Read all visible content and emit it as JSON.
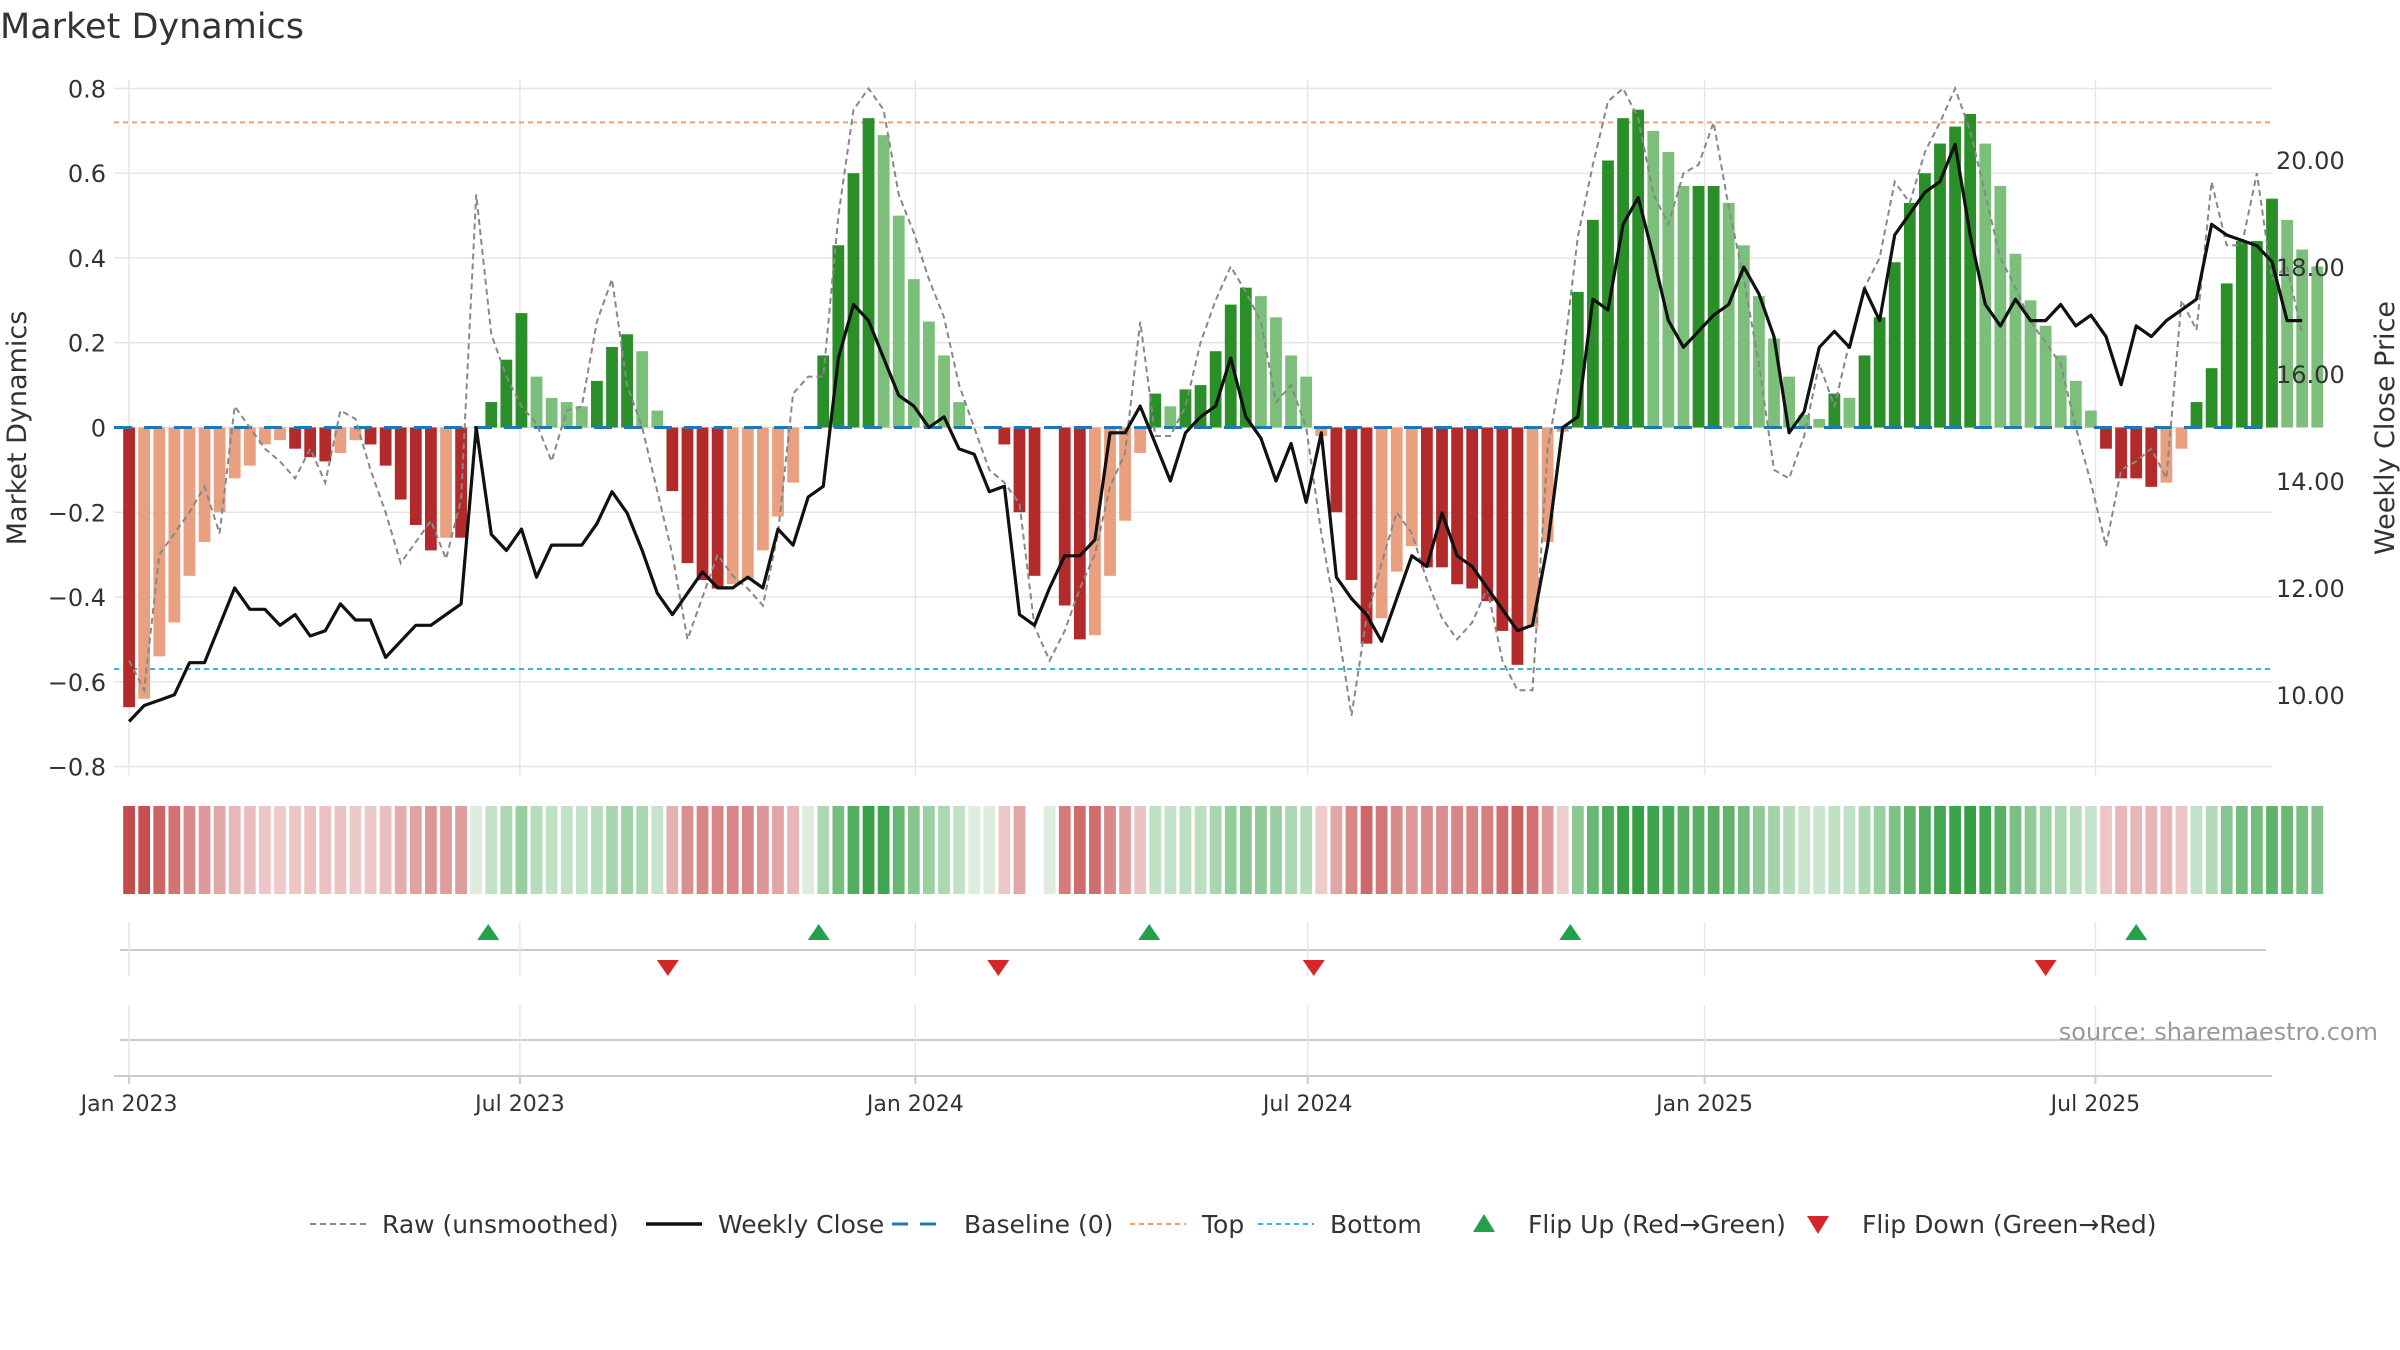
{
  "chart_data": {
    "type": "bar",
    "title": "Market Dynamics",
    "ylabel_left": "Market Dynamics",
    "ylabel_right": "Weekly Close Price",
    "left_ylim": [
      -0.82,
      0.82
    ],
    "left_ticks": [
      0.8,
      0.6,
      0.4,
      0.2,
      0,
      -0.2,
      -0.4,
      -0.6,
      -0.8
    ],
    "left_tick_labels": [
      "0.8",
      "0.6",
      "0.4",
      "0.2",
      "0",
      "−0.2",
      "−0.4",
      "−0.6",
      "−0.8"
    ],
    "right_ylim": [
      8.5,
      21.5
    ],
    "right_ticks": [
      20,
      18,
      16,
      14,
      12,
      10
    ],
    "right_tick_labels": [
      "20.00",
      "18.00",
      "16.00",
      "14.00",
      "12.00",
      "10.00"
    ],
    "top_level": 0.72,
    "bottom_level": -0.57,
    "baseline": 0,
    "x_start_week": -1,
    "x_end_week": 142,
    "x_ticks": [
      {
        "label": "Jan 2023",
        "week": 0
      },
      {
        "label": "Jul 2023",
        "week": 25.9
      },
      {
        "label": "Jan 2024",
        "week": 52.1
      },
      {
        "label": "Jul 2024",
        "week": 78.1
      },
      {
        "label": "Jan 2025",
        "week": 104.4
      },
      {
        "label": "Jul 2025",
        "week": 130.3
      }
    ],
    "bars": [
      -0.66,
      -0.64,
      -0.54,
      -0.46,
      -0.35,
      -0.27,
      -0.2,
      -0.12,
      -0.09,
      -0.04,
      -0.03,
      -0.05,
      -0.07,
      -0.08,
      -0.06,
      -0.03,
      -0.04,
      -0.09,
      -0.17,
      -0.23,
      -0.29,
      -0.26,
      -0.26,
      0.0,
      0.06,
      0.16,
      0.27,
      0.12,
      0.07,
      0.06,
      0.05,
      0.11,
      0.19,
      0.22,
      0.18,
      0.04,
      -0.15,
      -0.32,
      -0.36,
      -0.38,
      -0.37,
      -0.36,
      -0.29,
      -0.21,
      -0.13,
      0.0,
      0.17,
      0.43,
      0.6,
      0.73,
      0.69,
      0.5,
      0.35,
      0.25,
      0.17,
      0.06,
      0.0,
      0.0,
      -0.04,
      -0.2,
      -0.35,
      0.0,
      -0.42,
      -0.5,
      -0.49,
      -0.35,
      -0.22,
      -0.06,
      0.08,
      0.05,
      0.09,
      0.1,
      0.18,
      0.29,
      0.33,
      0.31,
      0.26,
      0.17,
      0.12,
      -0.02,
      -0.2,
      -0.36,
      -0.51,
      -0.45,
      -0.34,
      -0.28,
      -0.33,
      -0.33,
      -0.37,
      -0.38,
      -0.41,
      -0.48,
      -0.56,
      -0.47,
      -0.27,
      -0.01,
      0.32,
      0.49,
      0.63,
      0.73,
      0.75,
      0.7,
      0.65,
      0.57,
      0.57,
      0.57,
      0.53,
      0.43,
      0.31,
      0.21,
      0.12,
      0.03,
      0.02,
      0.08,
      0.07,
      0.17,
      0.26,
      0.39,
      0.53,
      0.6,
      0.67,
      0.71,
      0.74,
      0.67,
      0.57,
      0.41,
      0.3,
      0.24,
      0.17,
      0.11,
      0.04,
      -0.05,
      -0.12,
      -0.12,
      -0.14,
      -0.13,
      -0.05,
      0.06,
      0.14,
      0.34,
      0.44,
      0.44,
      0.54,
      0.49,
      0.42,
      0.38
    ],
    "bar_dark_color": "#2a8f28",
    "bar_light_color": "#7cbf7b",
    "bar_red_dark_color": "#b22a2a",
    "bar_red_light_color": "#e8a080",
    "raw": [
      -0.55,
      -0.62,
      -0.3,
      -0.25,
      -0.2,
      -0.14,
      -0.25,
      0.05,
      0.0,
      -0.05,
      -0.08,
      -0.12,
      -0.05,
      -0.13,
      0.04,
      0.02,
      -0.1,
      -0.2,
      -0.32,
      -0.27,
      -0.22,
      -0.31,
      -0.17,
      0.55,
      0.22,
      0.12,
      0.05,
      0.01,
      -0.08,
      0.04,
      0.05,
      0.25,
      0.35,
      0.1,
      0.0,
      -0.15,
      -0.3,
      -0.5,
      -0.4,
      -0.3,
      -0.35,
      -0.38,
      -0.42,
      -0.25,
      0.08,
      0.12,
      0.12,
      0.5,
      0.75,
      0.8,
      0.75,
      0.55,
      0.46,
      0.35,
      0.26,
      0.1,
      0.0,
      -0.1,
      -0.13,
      -0.18,
      -0.47,
      -0.55,
      -0.48,
      -0.38,
      -0.3,
      -0.14,
      -0.06,
      0.25,
      -0.02,
      -0.02,
      0.05,
      0.2,
      0.3,
      0.38,
      0.32,
      0.25,
      0.06,
      0.1,
      0.0,
      -0.25,
      -0.45,
      -0.68,
      -0.45,
      -0.32,
      -0.2,
      -0.25,
      -0.36,
      -0.45,
      -0.5,
      -0.46,
      -0.38,
      -0.55,
      -0.62,
      -0.62,
      -0.05,
      0.15,
      0.45,
      0.62,
      0.77,
      0.8,
      0.73,
      0.55,
      0.48,
      0.6,
      0.62,
      0.72,
      0.52,
      0.35,
      0.15,
      -0.1,
      -0.12,
      -0.02,
      0.15,
      0.05,
      0.2,
      0.33,
      0.4,
      0.58,
      0.53,
      0.65,
      0.72,
      0.8,
      0.7,
      0.55,
      0.4,
      0.33,
      0.25,
      0.2,
      0.15,
      0.0,
      -0.13,
      -0.28,
      -0.1,
      -0.08,
      -0.05,
      -0.12,
      0.3,
      0.23,
      0.58,
      0.43,
      0.43,
      0.6,
      0.35,
      0.38,
      0.22
    ],
    "weekly_close": [
      9.5,
      9.8,
      9.9,
      10.0,
      10.6,
      10.6,
      11.3,
      12.0,
      11.6,
      11.6,
      11.3,
      11.5,
      11.1,
      11.2,
      11.7,
      11.4,
      11.4,
      10.7,
      11.0,
      11.3,
      11.3,
      11.5,
      11.7,
      15.0,
      13.0,
      12.7,
      13.1,
      12.2,
      12.8,
      12.8,
      12.8,
      13.2,
      13.8,
      13.4,
      12.7,
      11.9,
      11.5,
      11.9,
      12.3,
      12.0,
      12.0,
      12.2,
      12.0,
      13.1,
      12.8,
      13.7,
      13.9,
      16.3,
      17.3,
      17.0,
      16.3,
      15.6,
      15.4,
      15.0,
      15.2,
      14.6,
      14.5,
      13.8,
      13.9,
      11.5,
      11.3,
      12.0,
      12.6,
      12.6,
      12.9,
      14.9,
      14.9,
      15.4,
      14.7,
      14.0,
      14.9,
      15.2,
      15.4,
      16.3,
      15.2,
      14.8,
      14.0,
      14.7,
      13.6,
      14.9,
      12.2,
      11.8,
      11.5,
      11.0,
      11.8,
      12.6,
      12.4,
      13.4,
      12.6,
      12.4,
      12.0,
      11.6,
      11.2,
      11.3,
      12.8,
      15.0,
      15.2,
      17.4,
      17.2,
      18.8,
      19.3,
      18.2,
      17.0,
      16.5,
      16.8,
      17.1,
      17.3,
      18.0,
      17.5,
      16.7,
      14.9,
      15.3,
      16.5,
      16.8,
      16.5,
      17.6,
      17.0,
      18.6,
      19.0,
      19.4,
      19.6,
      20.3,
      18.6,
      17.3,
      16.9,
      17.4,
      17.0,
      17.0,
      17.3,
      16.9,
      17.1,
      16.7,
      15.8,
      16.9,
      16.7,
      17.0,
      17.2,
      17.4,
      18.8,
      18.6,
      18.5,
      18.4,
      18.1,
      17.0,
      17.0
    ],
    "flip_up_weeks": [
      23.8,
      45.7,
      67.6,
      95.5,
      133.0
    ],
    "flip_down_weeks": [
      35.7,
      57.6,
      78.5,
      127.0
    ],
    "strip_gap_week": 60,
    "colors": {
      "raw": "#888888",
      "weekly_close": "#111111",
      "baseline": "#1f77b4",
      "top": "#f0a070",
      "bottom": "#30b8d8",
      "flip_up": "#22a04a",
      "flip_down": "#d62728",
      "grid": "#e6e6e6",
      "axis_text": "#333333"
    },
    "legend": [
      {
        "label": "Raw (unsmoothed)",
        "style": "raw"
      },
      {
        "label": "Weekly Close",
        "style": "close"
      },
      {
        "label": "Baseline (0)",
        "style": "baseline"
      },
      {
        "label": "Top",
        "style": "top"
      },
      {
        "label": "Bottom",
        "style": "bottom"
      },
      {
        "label": "Flip Up (Red→Green)",
        "style": "flipup"
      },
      {
        "label": "Flip Down (Green→Red)",
        "style": "flipdown"
      }
    ],
    "legend_position": "bottom-center",
    "source": "source: sharemaestro.com"
  }
}
